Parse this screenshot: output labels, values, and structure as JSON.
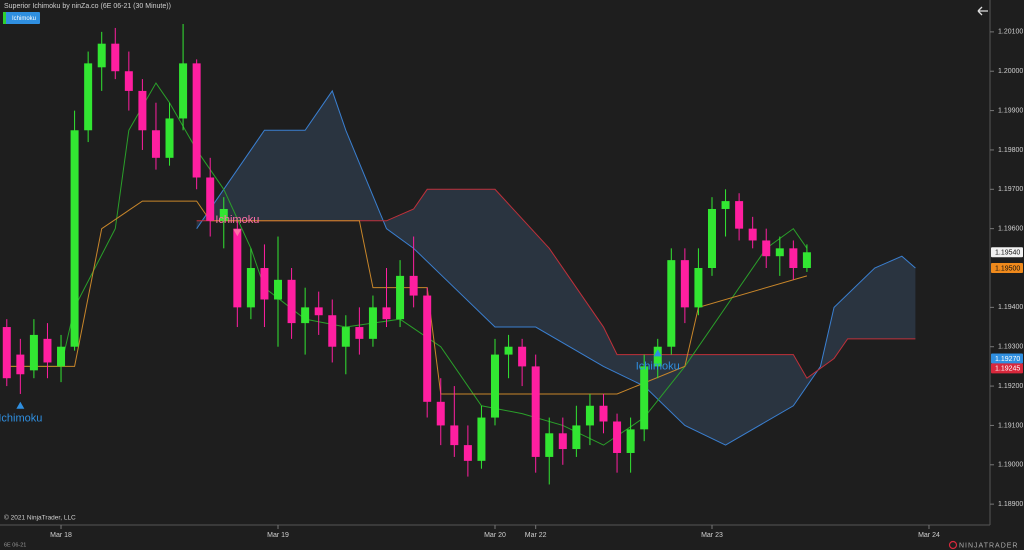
{
  "chart_data": {
    "type": "candlestick",
    "title": "Superior Ichimoku by ninZa.co (6E 06-21 (30 Minute))",
    "x": [
      0,
      1,
      2,
      3,
      4,
      5,
      6,
      7,
      8,
      9,
      10,
      11,
      12,
      13,
      14,
      15,
      16,
      17,
      18,
      19,
      20,
      21,
      22,
      23,
      24,
      25,
      26,
      27,
      28,
      29,
      30,
      31,
      32,
      33,
      34,
      35,
      36,
      37,
      38,
      39,
      40,
      41,
      42,
      43,
      44,
      45,
      46,
      47,
      48,
      49,
      50,
      51,
      52,
      53,
      54,
      55,
      56,
      57,
      58,
      59
    ],
    "open": [
      1.1935,
      1.1928,
      1.1924,
      1.1932,
      1.1925,
      1.193,
      1.1985,
      1.2001,
      1.2007,
      1.2,
      1.1995,
      1.1985,
      1.1978,
      1.1988,
      1.2002,
      1.1973,
      1.1962,
      1.196,
      1.194,
      1.195,
      1.1942,
      1.1947,
      1.1936,
      1.194,
      1.1938,
      1.193,
      1.1935,
      1.1932,
      1.194,
      1.1937,
      1.1948,
      1.1943,
      1.1916,
      1.191,
      1.1905,
      1.1901,
      1.1912,
      1.1928,
      1.193,
      1.1925,
      1.1902,
      1.1908,
      1.1904,
      1.191,
      1.1915,
      1.1911,
      1.1903,
      1.1909,
      1.1925,
      1.193,
      1.1952,
      1.194,
      1.195,
      1.1965,
      1.1967,
      1.196,
      1.1957,
      1.1953,
      1.1955,
      1.195
    ],
    "high": [
      1.1937,
      1.1932,
      1.1937,
      1.1936,
      1.1933,
      1.199,
      1.2005,
      1.201,
      1.2011,
      1.2005,
      1.1998,
      1.1992,
      1.1992,
      1.2012,
      1.2003,
      1.1978,
      1.1968,
      1.1962,
      1.1955,
      1.1956,
      1.1958,
      1.195,
      1.1945,
      1.1944,
      1.1942,
      1.1938,
      1.194,
      1.1943,
      1.195,
      1.1952,
      1.1958,
      1.1945,
      1.1922,
      1.192,
      1.191,
      1.1915,
      1.1932,
      1.1933,
      1.1932,
      1.1928,
      1.1912,
      1.1912,
      1.1915,
      1.1918,
      1.1918,
      1.1913,
      1.1912,
      1.1928,
      1.1932,
      1.1955,
      1.1955,
      1.1955,
      1.1968,
      1.197,
      1.1969,
      1.1963,
      1.196,
      1.1958,
      1.1957,
      1.1956
    ],
    "low": [
      1.192,
      1.1918,
      1.1922,
      1.1922,
      1.1921,
      1.1929,
      1.1982,
      1.1995,
      1.1998,
      1.199,
      1.198,
      1.1975,
      1.1976,
      1.1985,
      1.197,
      1.1958,
      1.1955,
      1.1935,
      1.1937,
      1.1935,
      1.193,
      1.1932,
      1.1928,
      1.1933,
      1.1926,
      1.1923,
      1.1928,
      1.193,
      1.1935,
      1.1935,
      1.194,
      1.1912,
      1.1905,
      1.1902,
      1.1897,
      1.1899,
      1.191,
      1.1922,
      1.192,
      1.1898,
      1.1895,
      1.19,
      1.1902,
      1.1905,
      1.1908,
      1.1898,
      1.1898,
      1.1906,
      1.1922,
      1.1928,
      1.1936,
      1.1938,
      1.1948,
      1.1958,
      1.1957,
      1.1955,
      1.195,
      1.1948,
      1.1947,
      1.1949
    ],
    "close": [
      1.1922,
      1.1923,
      1.1933,
      1.1926,
      1.193,
      1.1985,
      1.2002,
      1.2007,
      1.2,
      1.1995,
      1.1985,
      1.1978,
      1.1988,
      1.2002,
      1.1973,
      1.1962,
      1.1965,
      1.194,
      1.195,
      1.1942,
      1.1947,
      1.1936,
      1.194,
      1.1938,
      1.193,
      1.1935,
      1.1932,
      1.194,
      1.1937,
      1.1948,
      1.1943,
      1.1916,
      1.191,
      1.1905,
      1.1901,
      1.1912,
      1.1928,
      1.193,
      1.1925,
      1.1902,
      1.1908,
      1.1904,
      1.191,
      1.1915,
      1.1911,
      1.1903,
      1.1909,
      1.1925,
      1.193,
      1.1952,
      1.194,
      1.195,
      1.1965,
      1.1967,
      1.196,
      1.1957,
      1.1953,
      1.1955,
      1.195,
      1.1954
    ],
    "up_color": "#32e632",
    "down_color": "#ff1fa0",
    "xlim": [
      -0.5,
      72.5
    ],
    "xticks": [
      {
        "value": 4,
        "label": "Mar 18"
      },
      {
        "value": 20,
        "label": "Mar 19"
      },
      {
        "value": 36,
        "label": "Mar 20"
      },
      {
        "value": 39,
        "label": "Mar 22"
      },
      {
        "value": 52,
        "label": "Mar 23"
      },
      {
        "value": 68,
        "label": "Mar 24"
      }
    ],
    "ylim": [
      1.18847,
      1.20181
    ],
    "yticks": [
      {
        "value": 1.201,
        "label": "1.20100"
      },
      {
        "value": 1.2,
        "label": "1.20000"
      },
      {
        "value": 1.199,
        "label": "1.19900"
      },
      {
        "value": 1.198,
        "label": "1.19800"
      },
      {
        "value": 1.197,
        "label": "1.19700"
      },
      {
        "value": 1.196,
        "label": "1.19600"
      },
      {
        "value": 1.194,
        "label": "1.19400"
      },
      {
        "value": 1.193,
        "label": "1.19300"
      },
      {
        "value": 1.192,
        "label": "1.19200"
      },
      {
        "value": 1.191,
        "label": "1.19100"
      },
      {
        "value": 1.19,
        "label": "1.19000"
      },
      {
        "value": 1.189,
        "label": "1.18900"
      }
    ],
    "lines": [
      {
        "color": "#3a7fd0",
        "x": [
          14,
          18,
          19,
          22,
          24,
          25,
          28,
          30,
          33,
          36,
          39,
          44,
          47,
          50,
          53,
          58,
          60,
          61,
          64,
          66,
          67
        ],
        "values": [
          1.196,
          1.198,
          1.1985,
          1.1985,
          1.1995,
          1.1985,
          1.196,
          1.1955,
          1.1945,
          1.1935,
          1.1935,
          1.1925,
          1.192,
          1.191,
          1.1905,
          1.1915,
          1.1925,
          1.194,
          1.195,
          1.1953,
          1.195
        ]
      },
      {
        "color": "#c0303a",
        "x": [
          14,
          28,
          30,
          31,
          36,
          40,
          44,
          45,
          58,
          59,
          61,
          62,
          67
        ],
        "values": [
          1.1962,
          1.1962,
          1.1965,
          1.197,
          1.197,
          1.1955,
          1.1935,
          1.1928,
          1.1928,
          1.1922,
          1.1927,
          1.1932,
          1.1932
        ]
      },
      {
        "color": "#2aa02a",
        "x": [
          0,
          4,
          5,
          8,
          9,
          11,
          12,
          14,
          16,
          18,
          19,
          22,
          25,
          29,
          32,
          35,
          38,
          41,
          44,
          47,
          50,
          53,
          56,
          58,
          59
        ],
        "values": [
          1.1925,
          1.1925,
          1.194,
          1.196,
          1.1985,
          1.1997,
          1.1992,
          1.198,
          1.197,
          1.1955,
          1.1945,
          1.1937,
          1.1935,
          1.1937,
          1.193,
          1.1915,
          1.1913,
          1.191,
          1.1905,
          1.1912,
          1.1925,
          1.194,
          1.1955,
          1.196,
          1.1955
        ]
      },
      {
        "color": "#c8862a",
        "x": [
          0,
          5,
          7,
          10,
          14,
          15,
          17,
          26,
          27,
          31,
          32,
          44,
          45,
          50,
          51,
          59
        ],
        "values": [
          1.1925,
          1.1925,
          1.196,
          1.1967,
          1.1967,
          1.1962,
          1.1962,
          1.1962,
          1.1945,
          1.1945,
          1.1918,
          1.1918,
          1.1918,
          1.1925,
          1.194,
          1.1948
        ]
      }
    ],
    "cloud_color": "#3a4f6a",
    "annotations": [
      {
        "text": "Ichimoku",
        "x": 1,
        "y": 1.1915,
        "direction": "up",
        "color": "#2f8fe0"
      },
      {
        "text": "Ichimoku",
        "x": 17,
        "y": 1.19591,
        "direction": "down",
        "color": "#ff6fa8"
      },
      {
        "text": "Ichimoku",
        "x": 48,
        "y": 1.19283,
        "direction": "up",
        "color": "#2f8fe0"
      }
    ],
    "price_markers": [
      {
        "value": 1.1954,
        "label": "1.19540",
        "color": "#f2f2f2",
        "text_color": "#111111"
      },
      {
        "value": 1.195,
        "label": "1.19500",
        "color": "#f08a1c",
        "text_color": "#111111"
      },
      {
        "value": 1.1927,
        "label": "1.19270",
        "color": "#2f8fe0",
        "text_color": "#ffffff"
      },
      {
        "value": 1.19245,
        "label": "1.19245",
        "color": "#d8283c",
        "text_color": "#ffffff"
      }
    ]
  },
  "ui": {
    "indicator_button": "Ichimoku",
    "copyright": "© 2021 NinjaTrader, LLC",
    "instrument": "6E 06-21",
    "logo": "NINJATRADER"
  }
}
